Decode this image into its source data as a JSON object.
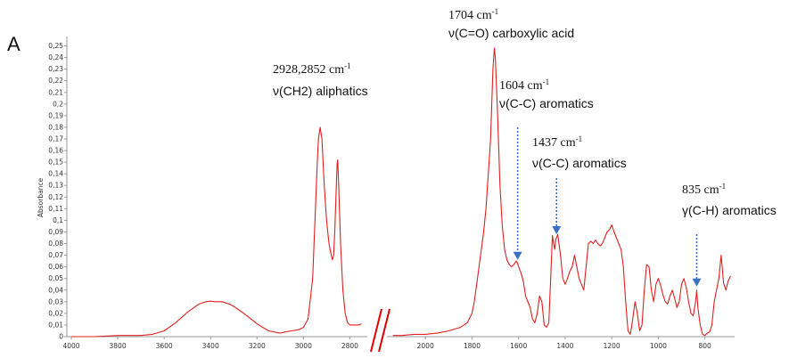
{
  "chart_data": {
    "type": "line",
    "panel_label": "A",
    "ylabel": "Absorbance",
    "y_ticks": [
      "0",
      "0,01",
      "0,02",
      "0,03",
      "0,04",
      "0,05",
      "0,06",
      "0,07",
      "0,08",
      "0,09",
      "0,1",
      "0,11",
      "0,12",
      "0,13",
      "0,14",
      "0,15",
      "0,16",
      "0,17",
      "0,18",
      "0,19",
      "0,2",
      "0,21",
      "0,22",
      "0,23",
      "0,24",
      "0,25"
    ],
    "ylim": [
      0,
      0.255
    ],
    "x_axis_reversed": true,
    "x_axis_broken": true,
    "segment_left": {
      "xlim": [
        4000,
        2740
      ],
      "x_ticks": [
        "4000",
        "3800",
        "3600",
        "3400",
        "3200",
        "3000",
        "2800"
      ],
      "x": [
        4000,
        3900,
        3800,
        3700,
        3650,
        3600,
        3550,
        3500,
        3450,
        3420,
        3400,
        3380,
        3350,
        3320,
        3300,
        3250,
        3200,
        3150,
        3100,
        3080,
        3050,
        3020,
        3000,
        2980,
        2960,
        2950,
        2940,
        2935,
        2928,
        2920,
        2910,
        2900,
        2890,
        2880,
        2875,
        2870,
        2865,
        2860,
        2855,
        2852,
        2848,
        2840,
        2830,
        2820,
        2810,
        2800,
        2790,
        2780,
        2760,
        2750
      ],
      "y": [
        0,
        0,
        0.001,
        0.001,
        0.002,
        0.005,
        0.012,
        0.021,
        0.028,
        0.03,
        0.0305,
        0.03,
        0.03,
        0.028,
        0.026,
        0.019,
        0.011,
        0.005,
        0.003,
        0.004,
        0.005,
        0.006,
        0.008,
        0.015,
        0.05,
        0.1,
        0.15,
        0.17,
        0.18,
        0.17,
        0.13,
        0.1,
        0.08,
        0.07,
        0.066,
        0.07,
        0.09,
        0.12,
        0.148,
        0.152,
        0.13,
        0.08,
        0.04,
        0.02,
        0.012,
        0.01,
        0.01,
        0.01,
        0.01,
        0.011
      ]
    },
    "segment_right": {
      "xlim": [
        2150,
        680
      ],
      "x_ticks": [
        "2000",
        "1800",
        "1600",
        "1400",
        "1200",
        "1000",
        "800"
      ],
      "x": [
        2140,
        2100,
        2050,
        2000,
        1950,
        1900,
        1850,
        1820,
        1800,
        1790,
        1780,
        1770,
        1760,
        1750,
        1740,
        1730,
        1720,
        1710,
        1704,
        1700,
        1690,
        1680,
        1670,
        1660,
        1650,
        1640,
        1630,
        1620,
        1610,
        1604,
        1600,
        1590,
        1580,
        1570,
        1560,
        1550,
        1540,
        1530,
        1520,
        1510,
        1500,
        1490,
        1480,
        1470,
        1460,
        1455,
        1450,
        1445,
        1440,
        1437,
        1432,
        1420,
        1410,
        1400,
        1390,
        1380,
        1370,
        1360,
        1350,
        1340,
        1330,
        1320,
        1310,
        1300,
        1290,
        1280,
        1270,
        1260,
        1250,
        1240,
        1230,
        1220,
        1210,
        1200,
        1190,
        1180,
        1170,
        1160,
        1150,
        1140,
        1130,
        1120,
        1110,
        1100,
        1090,
        1080,
        1070,
        1060,
        1050,
        1040,
        1030,
        1020,
        1010,
        1000,
        990,
        980,
        970,
        960,
        950,
        940,
        930,
        920,
        910,
        900,
        890,
        880,
        870,
        860,
        850,
        840,
        835,
        830,
        820,
        810,
        800,
        790,
        780,
        770,
        760,
        750,
        740,
        730,
        720,
        710,
        700,
        690
      ],
      "y": [
        0.001,
        0.001,
        0.002,
        0.002,
        0.003,
        0.005,
        0.008,
        0.012,
        0.02,
        0.03,
        0.045,
        0.06,
        0.075,
        0.09,
        0.11,
        0.14,
        0.17,
        0.23,
        0.248,
        0.24,
        0.19,
        0.13,
        0.095,
        0.075,
        0.066,
        0.062,
        0.06,
        0.062,
        0.065,
        0.063,
        0.06,
        0.055,
        0.048,
        0.035,
        0.03,
        0.025,
        0.015,
        0.012,
        0.02,
        0.035,
        0.03,
        0.01,
        0.008,
        0.012,
        0.06,
        0.087,
        0.08,
        0.075,
        0.084,
        0.085,
        0.088,
        0.07,
        0.05,
        0.045,
        0.05,
        0.056,
        0.06,
        0.07,
        0.06,
        0.05,
        0.045,
        0.04,
        0.06,
        0.08,
        0.082,
        0.08,
        0.083,
        0.08,
        0.078,
        0.08,
        0.085,
        0.09,
        0.092,
        0.096,
        0.09,
        0.085,
        0.08,
        0.075,
        0.06,
        0.03,
        0.005,
        0.002,
        0.015,
        0.03,
        0.02,
        0.005,
        0.01,
        0.04,
        0.062,
        0.06,
        0.04,
        0.03,
        0.045,
        0.05,
        0.044,
        0.036,
        0.03,
        0.028,
        0.035,
        0.04,
        0.033,
        0.025,
        0.03,
        0.045,
        0.05,
        0.042,
        0.03,
        0.02,
        0.018,
        0.03,
        0.04,
        0.025,
        0.01,
        0.002,
        0.001,
        0.003,
        0.004,
        0.01,
        0.03,
        0.04,
        0.05,
        0.07,
        0.046,
        0.04,
        0.048,
        0.052
      ]
    },
    "line_color": "#e02020",
    "axis_color": "#9a9a9a",
    "break_color": "#dd0000",
    "arrow_color": "#3a70c8",
    "annotations": [
      {
        "wn": "2928,2852 cm",
        "sup": "-1",
        "desc": "ν(CH2) aliphatics",
        "segment": "left"
      },
      {
        "wn": "1704 cm",
        "sup": "-1",
        "desc": "ν(C=O) carboxylic acid",
        "segment": "right"
      },
      {
        "wn": "1604 cm",
        "sup": "-1",
        "desc": "ν(C-C) aromatics",
        "segment": "right",
        "arrow_x": 1604
      },
      {
        "wn": "1437 cm",
        "sup": "-1",
        "desc": "ν(C-C) aromatics",
        "segment": "right",
        "arrow_x": 1437
      },
      {
        "wn": "835 cm",
        "sup": "-1",
        "desc": "γ(C-H) aromatics",
        "segment": "right",
        "arrow_x": 835
      }
    ]
  }
}
